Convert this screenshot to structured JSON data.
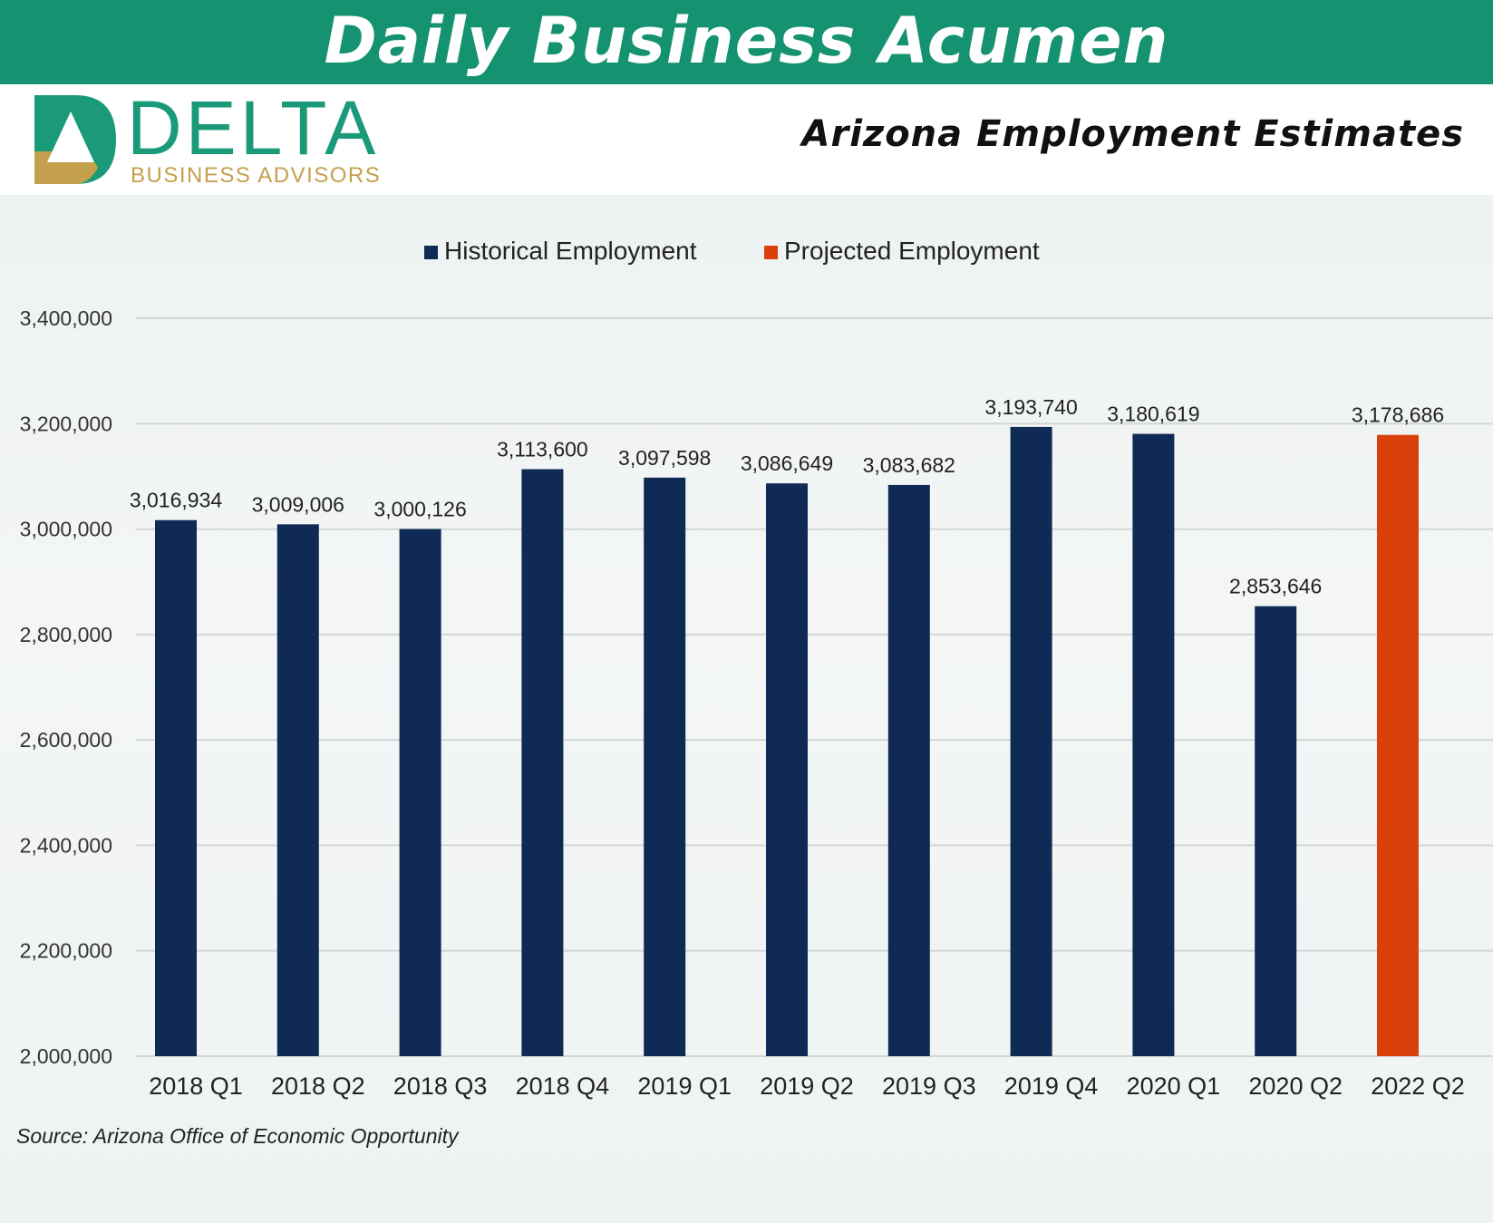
{
  "banner": {
    "title": "Daily Business Acumen"
  },
  "logo": {
    "word": "DELTA",
    "sub": "BUSINESS ADVISORS",
    "icon": "delta-triangle-logo"
  },
  "page_title": "Arizona Employment Estimates",
  "colors": {
    "banner": "#159270",
    "historical": "#0e2a55",
    "projected": "#d9400c",
    "logo_green": "#1a9a78",
    "logo_gold": "#c4a04c"
  },
  "chart_data": {
    "type": "bar",
    "title": "",
    "xlabel": "",
    "ylabel": "",
    "ylim": [
      2000000,
      3400000
    ],
    "yticks": [
      2000000,
      2200000,
      2400000,
      2600000,
      2800000,
      3000000,
      3200000,
      3400000
    ],
    "ytick_labels": [
      "2,000,000",
      "2,200,000",
      "2,400,000",
      "2,600,000",
      "2,800,000",
      "3,000,000",
      "3,200,000",
      "3,400,000"
    ],
    "grid": true,
    "legend_position": "top-center",
    "legend": [
      {
        "name": "Historical Employment",
        "color": "#0e2a55"
      },
      {
        "name": "Projected Employment",
        "color": "#d9400c"
      }
    ],
    "categories": [
      "2018 Q1",
      "2018 Q2",
      "2018 Q3",
      "2018 Q4",
      "2019 Q1",
      "2019 Q2",
      "2019 Q3",
      "2019 Q4",
      "2020 Q1",
      "2020 Q2",
      "2022 Q2"
    ],
    "values": [
      3016934,
      3009006,
      3000126,
      3113600,
      3097598,
      3086649,
      3083682,
      3193740,
      3180619,
      2853646,
      3178686
    ],
    "value_labels": [
      "3,016,934",
      "3,009,006",
      "3,000,126",
      "3,113,600",
      "3,097,598",
      "3,086,649",
      "3,083,682",
      "3,193,740",
      "3,180,619",
      "2,853,646",
      "3,178,686"
    ],
    "series_index": [
      0,
      0,
      0,
      0,
      0,
      0,
      0,
      0,
      0,
      0,
      1
    ]
  },
  "source": "Source: Arizona Office of Economic Opportunity"
}
